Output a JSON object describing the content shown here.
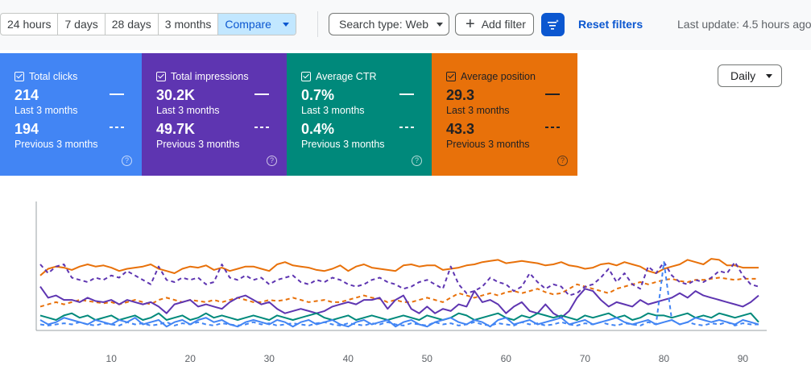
{
  "toolbar": {
    "ranges": [
      "24 hours",
      "7 days",
      "28 days",
      "3 months"
    ],
    "compare_label": "Compare",
    "search_type_label": "Search type: Web",
    "add_filter_label": "Add filter",
    "reset_filters_label": "Reset filters",
    "last_update": "Last update: 4.5 hours ago"
  },
  "cards": [
    {
      "label": "Total clicks",
      "current": "214",
      "current_period": "Last 3 months",
      "previous": "194",
      "previous_period": "Previous 3 months",
      "color": "#4285f4"
    },
    {
      "label": "Total impressions",
      "current": "30.2K",
      "current_period": "Last 3 months",
      "previous": "49.7K",
      "previous_period": "Previous 3 months",
      "color": "#5e35b1"
    },
    {
      "label": "Average CTR",
      "current": "0.7%",
      "current_period": "Last 3 months",
      "previous": "0.4%",
      "previous_period": "Previous 3 months",
      "color": "#00897b"
    },
    {
      "label": "Average position",
      "current": "29.3",
      "current_period": "Last 3 months",
      "previous": "43.3",
      "previous_period": "Previous 3 months",
      "color": "#e8710a"
    }
  ],
  "granularity_label": "Daily",
  "chart_data": {
    "type": "line",
    "x_ticks": [
      10,
      20,
      30,
      40,
      50,
      60,
      70,
      80,
      90
    ],
    "xlim": [
      1,
      92
    ],
    "ylim": [
      0,
      100
    ],
    "grid": false,
    "series": [
      {
        "color": "#e8710a",
        "style": "solid",
        "values": [
          48,
          54,
          56,
          55,
          53,
          56,
          58,
          56,
          57,
          55,
          52,
          54,
          55,
          56,
          58,
          54,
          52,
          50,
          54,
          56,
          55,
          57,
          53,
          55,
          52,
          54,
          56,
          56,
          54,
          52,
          58,
          60,
          57,
          56,
          55,
          53,
          52,
          54,
          57,
          52,
          56,
          58,
          55,
          54,
          53,
          52,
          57,
          58,
          56,
          57,
          57,
          53,
          54,
          55,
          57,
          58,
          60,
          61,
          62,
          59,
          60,
          61,
          60,
          59,
          57,
          58,
          60,
          57,
          56,
          54,
          55,
          58,
          59,
          57,
          60,
          58,
          56,
          52,
          50,
          54,
          56,
          58,
          62,
          60,
          58,
          63,
          62,
          57,
          57,
          55,
          55,
          55
        ]
      },
      {
        "color": "#e8710a",
        "style": "dashed",
        "values": [
          20,
          22,
          24,
          22,
          24,
          26,
          25,
          24,
          23,
          24,
          22,
          24,
          26,
          24,
          22,
          26,
          28,
          26,
          24,
          26,
          25,
          24,
          26,
          24,
          26,
          28,
          26,
          24,
          24,
          26,
          25,
          26,
          28,
          26,
          24,
          25,
          26,
          24,
          24,
          26,
          28,
          30,
          28,
          27,
          24,
          26,
          24,
          24,
          26,
          28,
          26,
          24,
          28,
          32,
          30,
          28,
          30,
          32,
          30,
          33,
          34,
          32,
          34,
          36,
          33,
          31,
          32,
          36,
          40,
          38,
          36,
          34,
          32,
          36,
          38,
          40,
          42,
          40,
          42,
          44,
          45,
          43,
          42,
          44,
          44,
          45,
          46,
          45,
          44,
          45,
          45,
          45
        ]
      },
      {
        "color": "#5e35b1",
        "style": "solid",
        "values": [
          38,
          28,
          30,
          26,
          26,
          24,
          28,
          25,
          24,
          26,
          22,
          26,
          24,
          22,
          24,
          20,
          14,
          22,
          24,
          26,
          20,
          22,
          20,
          18,
          24,
          28,
          30,
          26,
          22,
          24,
          18,
          14,
          16,
          18,
          16,
          14,
          16,
          20,
          22,
          24,
          22,
          26,
          26,
          28,
          18,
          26,
          30,
          18,
          14,
          20,
          14,
          18,
          16,
          22,
          20,
          34,
          24,
          26,
          22,
          14,
          20,
          24,
          16,
          14,
          22,
          14,
          10,
          16,
          28,
          36,
          34,
          26,
          20,
          24,
          22,
          20,
          26,
          22,
          24,
          26,
          28,
          32,
          28,
          34,
          30,
          28,
          26,
          24,
          22,
          20,
          24,
          30
        ]
      },
      {
        "color": "#5e35b1",
        "style": "dashed",
        "values": [
          58,
          50,
          56,
          58,
          46,
          44,
          42,
          46,
          44,
          48,
          46,
          52,
          48,
          44,
          40,
          56,
          44,
          42,
          46,
          44,
          46,
          40,
          42,
          58,
          46,
          44,
          48,
          44,
          46,
          40,
          44,
          46,
          48,
          42,
          40,
          44,
          42,
          46,
          44,
          40,
          38,
          40,
          44,
          46,
          42,
          40,
          36,
          38,
          42,
          44,
          40,
          36,
          56,
          40,
          32,
          34,
          38,
          46,
          42,
          40,
          34,
          38,
          50,
          42,
          36,
          40,
          38,
          30,
          32,
          38,
          40,
          46,
          54,
          42,
          50,
          40,
          36,
          56,
          50,
          60,
          48,
          42,
          40,
          44,
          42,
          46,
          52,
          50,
          60,
          48,
          40,
          38
        ]
      },
      {
        "color": "#00897b",
        "style": "solid",
        "values": [
          12,
          10,
          8,
          12,
          14,
          10,
          12,
          8,
          10,
          12,
          8,
          10,
          12,
          8,
          10,
          14,
          8,
          10,
          12,
          8,
          10,
          14,
          10,
          12,
          10,
          8,
          10,
          12,
          10,
          8,
          12,
          10,
          8,
          10,
          12,
          14,
          10,
          8,
          10,
          12,
          8,
          10,
          12,
          10,
          8,
          10,
          12,
          10,
          8,
          12,
          10,
          8,
          10,
          14,
          12,
          8,
          10,
          12,
          14,
          10,
          8,
          12,
          10,
          14,
          12,
          10,
          12,
          10,
          8,
          12,
          10,
          12,
          14,
          10,
          12,
          8,
          10,
          14,
          12,
          12,
          10,
          12,
          14,
          10,
          12,
          10,
          14,
          12,
          10,
          12,
          14,
          6
        ]
      },
      {
        "color": "#4285f4",
        "style": "solid",
        "values": [
          8,
          4,
          6,
          10,
          8,
          6,
          4,
          8,
          6,
          4,
          8,
          6,
          10,
          4,
          6,
          8,
          2,
          6,
          8,
          4,
          8,
          10,
          6,
          8,
          4,
          2,
          6,
          8,
          6,
          4,
          8,
          6,
          2,
          6,
          8,
          4,
          6,
          8,
          4,
          2,
          6,
          8,
          4,
          6,
          8,
          2,
          6,
          8,
          4,
          2,
          6,
          8,
          10,
          6,
          4,
          8,
          6,
          2,
          8,
          10,
          4,
          6,
          8,
          4,
          6,
          8,
          10,
          4,
          6,
          8,
          4,
          6,
          8,
          10,
          6,
          4,
          6,
          8,
          4,
          6,
          8,
          4,
          6,
          10,
          8,
          6,
          8,
          6,
          4,
          8,
          6,
          4
        ]
      },
      {
        "color": "#4285f4",
        "style": "dashed",
        "values": [
          4,
          3,
          4,
          5,
          4,
          6,
          4,
          3,
          5,
          4,
          3,
          6,
          4,
          5,
          3,
          4,
          6,
          3,
          5,
          4,
          6,
          4,
          3,
          5,
          4,
          3,
          4,
          6,
          4,
          5,
          3,
          4,
          5,
          4,
          3,
          5,
          6,
          4,
          3,
          5,
          4,
          3,
          5,
          4,
          6,
          4,
          3,
          5,
          4,
          3,
          6,
          4,
          5,
          3,
          4,
          6,
          4,
          3,
          5,
          4,
          3,
          6,
          4,
          5,
          3,
          4,
          6,
          4,
          3,
          5,
          4,
          6,
          4,
          3,
          5,
          4,
          3,
          6,
          4,
          60,
          8,
          4,
          6,
          4,
          3,
          5,
          4,
          6,
          3,
          5,
          4,
          4
        ]
      }
    ]
  }
}
